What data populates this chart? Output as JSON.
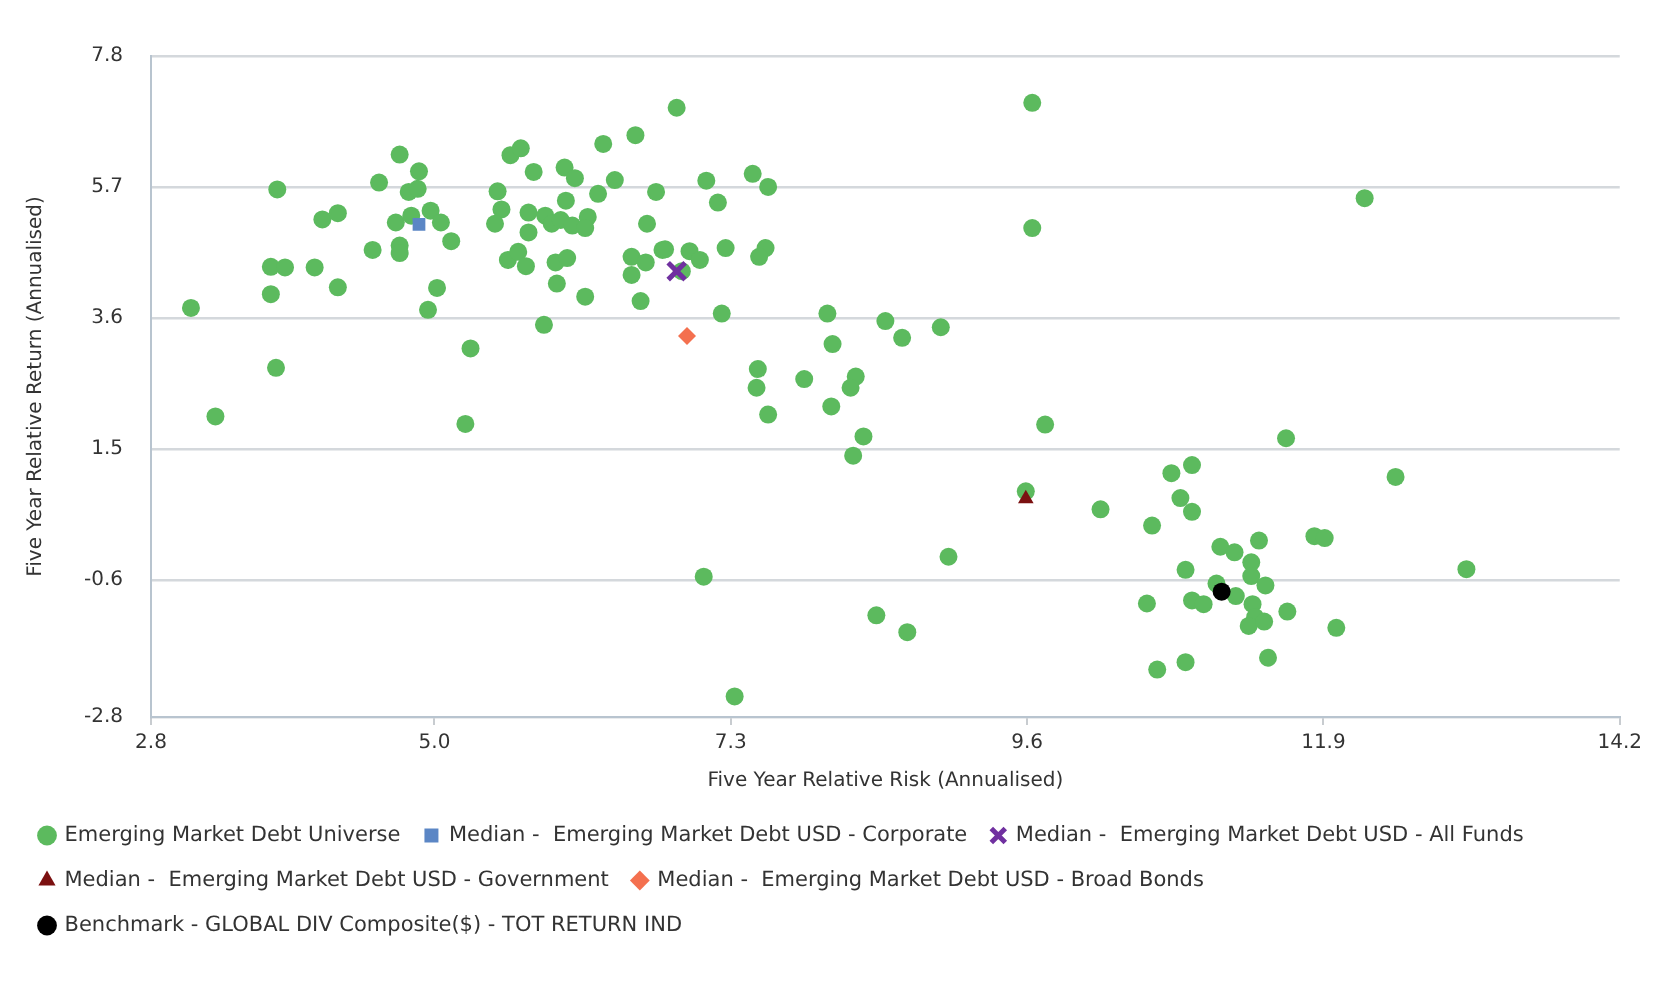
{
  "chart_data": {
    "type": "scatter",
    "xlabel": "Five Year Relative Risk (Annualised)",
    "ylabel": "Five Year Relative Return (Annualised)",
    "xlim": [
      2.8,
      14.2
    ],
    "xticks": [
      2.8,
      {
        "value": 5,
        "label": "5.0"
      },
      7.3,
      9.6,
      11.9,
      14.2
    ],
    "ylim": [
      -2.8,
      7.8
    ],
    "yticks": [
      -2.8,
      -0.6,
      1.5,
      3.6,
      5.7,
      7.8
    ],
    "grid": "y",
    "legend": "bottom",
    "series": [
      {
        "name": "Emerging Market Debt Universe",
        "color": "#5cba5e",
        "marker": "circle",
        "x": [
          3.11,
          3.3,
          3.77,
          3.78,
          3.73,
          3.84,
          3.73,
          4.07,
          4.13,
          4.25,
          4.25,
          4.52,
          4.57,
          4.73,
          4.88,
          4.8,
          4.87,
          4.7,
          4.82,
          4.97,
          5.05,
          4.73,
          4.73,
          5.13,
          5.02,
          4.95,
          5.28,
          5.24,
          5.49,
          5.52,
          5.47,
          5.59,
          5.67,
          5.77,
          5.73,
          5.73,
          5.86,
          5.91,
          6.01,
          6.09,
          6.02,
          5.98,
          6.07,
          6.19,
          6.17,
          5.57,
          5.65,
          5.71,
          5.94,
          6.03,
          5.95,
          6.17,
          5.85,
          6.27,
          6.31,
          6.4,
          6.56,
          6.72,
          6.65,
          6.53,
          6.64,
          6.53,
          6.6,
          6.77,
          6.88,
          7.11,
          7.2,
          7.47,
          7.59,
          6.79,
          6.98,
          7.06,
          7.26,
          7.57,
          7.52,
          6.92,
          7.23,
          8.05,
          8.09,
          8.5,
          8.63,
          8.93,
          7.51,
          7.5,
          7.59,
          7.87,
          8.27,
          8.23,
          8.08,
          8.33,
          8.25,
          9.64,
          9.64,
          9.74,
          9.59,
          10.17,
          8.99,
          7.09,
          8.43,
          8.67,
          7.33,
          12.22,
          11.61,
          10.72,
          10.88,
          12.46,
          10.57,
          10.79,
          10.88,
          11.1,
          11.21,
          11.4,
          11.83,
          11.91,
          13.01,
          10.83,
          11.34,
          11.34,
          11.45,
          11.07,
          11.22,
          10.53,
          10.88,
          10.97,
          11.35,
          11.37,
          11.32,
          11.44,
          11.62,
          12,
          11.47,
          10.83,
          10.61
        ],
        "values": [
          3.76,
          2.02,
          2.8,
          5.66,
          4.42,
          4.41,
          3.98,
          4.41,
          5.18,
          5.28,
          4.09,
          4.69,
          5.77,
          6.22,
          5.95,
          5.62,
          5.67,
          5.13,
          5.24,
          5.32,
          5.13,
          4.76,
          4.64,
          4.83,
          4.08,
          3.73,
          3.11,
          1.9,
          5.63,
          5.34,
          5.11,
          6.21,
          6.32,
          5.94,
          5.29,
          4.97,
          5.24,
          5.11,
          6.01,
          5.84,
          5.48,
          5.17,
          5.08,
          5.22,
          5.04,
          4.53,
          4.66,
          4.43,
          4.49,
          4.56,
          4.15,
          3.94,
          3.49,
          5.59,
          6.39,
          5.81,
          6.53,
          5.62,
          5.11,
          4.58,
          4.49,
          4.29,
          3.87,
          4.69,
          6.97,
          5.8,
          5.45,
          5.91,
          5.7,
          4.7,
          4.67,
          4.53,
          4.72,
          4.72,
          4.58,
          4.35,
          3.67,
          3.67,
          3.18,
          3.55,
          3.28,
          3.45,
          2.78,
          2.48,
          2.05,
          2.62,
          2.66,
          2.48,
          2.18,
          1.7,
          1.39,
          7.05,
          5.04,
          1.89,
          0.82,
          0.53,
          -0.23,
          -0.55,
          -1.17,
          -1.44,
          -2.47,
          5.52,
          1.67,
          1.11,
          1.24,
          1.05,
          0.27,
          0.71,
          0.49,
          -0.07,
          -0.16,
          0.03,
          0.1,
          0.07,
          -0.43,
          -0.44,
          -0.32,
          -0.54,
          -0.69,
          -0.66,
          -0.86,
          -0.98,
          -0.93,
          -0.99,
          -0.99,
          -1.2,
          -1.34,
          -1.27,
          -1.11,
          -1.37,
          -1.85,
          -1.92,
          -2.04
        ]
      },
      {
        "name": "Median -  Emerging Market Debt USD - Corporate",
        "color": "#5b86c5",
        "marker": "square",
        "x": [
          4.88
        ],
        "values": [
          5.1
        ]
      },
      {
        "name": "Median -  Emerging Market Debt USD - All Funds",
        "color": "#7030a0",
        "marker": "cross",
        "x": [
          6.88
        ],
        "values": [
          4.35
        ]
      },
      {
        "name": "Median -  Emerging Market Debt USD - Government",
        "color": "#7b1010",
        "marker": "triangle",
        "x": [
          9.59
        ],
        "values": [
          0.7
        ]
      },
      {
        "name": "Median -  Emerging Market Debt USD - Broad Bonds",
        "color": "#f4704f",
        "marker": "diamond",
        "x": [
          6.96
        ],
        "values": [
          3.31
        ]
      },
      {
        "name": "Benchmark - GLOBAL DIV Composite($) - TOT RETURN IND",
        "color": "#000000",
        "marker": "circle",
        "x": [
          11.11
        ],
        "values": [
          -0.79
        ]
      }
    ]
  }
}
